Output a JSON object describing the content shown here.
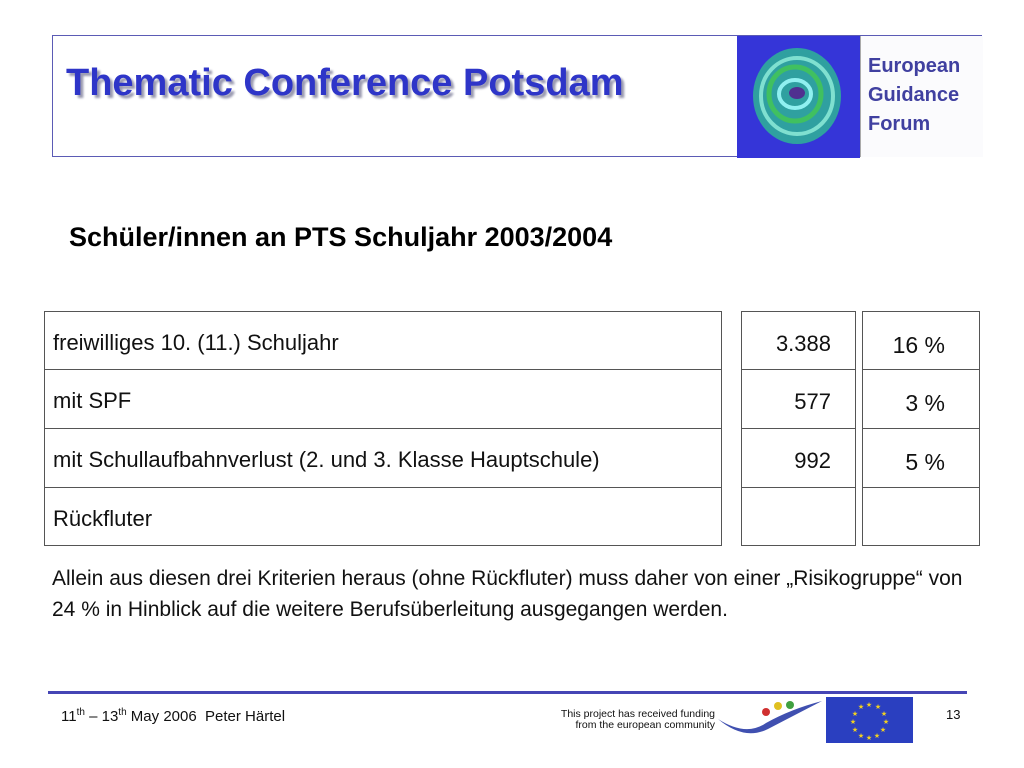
{
  "header": {
    "title": "Thematic Conference Potsdam",
    "logo_lines": [
      "European",
      "Guidance",
      "Forum"
    ]
  },
  "subtitle": "Schüler/innen an PTS Schuljahr 2003/2004",
  "table": {
    "rows": [
      {
        "label": "freiwilliges 10. (11.) Schuljahr",
        "count": "3.388",
        "percent": "16 %"
      },
      {
        "label": "mit SPF",
        "count": "577",
        "percent": "3 %"
      },
      {
        "label": "mit Schullaufbahnverlust (2. und 3. Klasse Hauptschule)",
        "count": "992",
        "percent": "5 %"
      },
      {
        "label": "Rückfluter",
        "count": "",
        "percent": ""
      }
    ]
  },
  "paragraph": " Allein aus diesen drei Kriterien heraus (ohne Rückfluter) muss daher von einer „Risikogruppe“ von 24 % in Hinblick auf die weitere Berufsüberleitung ausgegangen werden.",
  "footer": {
    "day1": "11",
    "sup1": "th",
    "dash": " – ",
    "day2": "13",
    "sup2": "th",
    "rest": " May 2006  Peter Härtel",
    "funding_line1": "This project has received funding",
    "funding_line2": "from the european community",
    "page": "13"
  },
  "colors": {
    "title": "#2e35c8",
    "rule": "#4545b5",
    "eu_blue": "#2a3fc0"
  }
}
